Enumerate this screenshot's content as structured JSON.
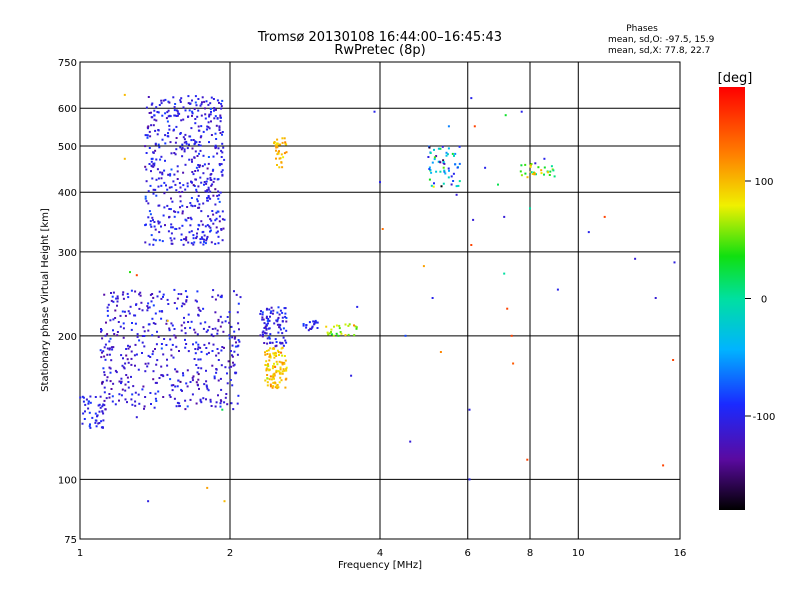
{
  "chart_data": {
    "type": "scatter",
    "title": "Tromsø 20130108 16:44:00–16:45:43",
    "subtitle": "RwPretec (8p)",
    "phases": {
      "heading": "Phases",
      "line_o": "mean, sd,O: -97.5, 15.9",
      "line_x": "mean, sd,X:  77.8, 22.7"
    },
    "xlabel": "Frequency [MHz]",
    "ylabel": "Stationary phase Virtual Height [km]",
    "xscale": "log",
    "yscale": "log",
    "xlim": [
      1,
      16
    ],
    "ylim": [
      75,
      750
    ],
    "xticks": [
      1,
      2,
      4,
      6,
      8,
      10,
      16
    ],
    "xtick_labels": [
      "1",
      "2",
      "4",
      "6",
      "8",
      "10",
      "16"
    ],
    "yticks": [
      75,
      100,
      200,
      300,
      400,
      500,
      600,
      750
    ],
    "ytick_labels": [
      "75",
      "100",
      "200",
      "300",
      "400",
      "500",
      "600",
      "750"
    ],
    "grid": true,
    "colorbar": {
      "label": "[deg]",
      "range": [
        -180,
        180
      ],
      "ticks": [
        100,
        0,
        -100
      ],
      "tick_labels": [
        "100",
        "0",
        "-100"
      ]
    },
    "clusters": [
      {
        "fmin": 1.35,
        "fmax": 1.95,
        "hmin": 310,
        "hmax": 640,
        "n": 520,
        "phase": -105,
        "spread": 14
      },
      {
        "fmin": 1.1,
        "fmax": 2.1,
        "hmin": 140,
        "hmax": 250,
        "n": 480,
        "phase": -110,
        "spread": 14
      },
      {
        "fmin": 1.0,
        "fmax": 1.12,
        "hmin": 128,
        "hmax": 150,
        "n": 45,
        "phase": -100,
        "spread": 10
      },
      {
        "fmin": 2.3,
        "fmax": 2.6,
        "hmin": 190,
        "hmax": 230,
        "n": 90,
        "phase": -100,
        "spread": 14
      },
      {
        "fmin": 2.35,
        "fmax": 2.6,
        "hmin": 155,
        "hmax": 190,
        "n": 110,
        "phase": 95,
        "spread": 14
      },
      {
        "fmin": 2.45,
        "fmax": 2.6,
        "hmin": 450,
        "hmax": 520,
        "n": 35,
        "phase": 100,
        "spread": 12
      },
      {
        "fmin": 2.8,
        "fmax": 3.0,
        "hmin": 205,
        "hmax": 215,
        "n": 20,
        "phase": -100,
        "spread": 10
      },
      {
        "fmin": 3.1,
        "fmax": 3.6,
        "hmin": 200,
        "hmax": 212,
        "n": 25,
        "phase": 70,
        "spread": 20
      },
      {
        "fmin": 5.0,
        "fmax": 5.8,
        "hmin": 410,
        "hmax": 500,
        "n": 60,
        "phase": -60,
        "spread": 60
      },
      {
        "fmin": 7.6,
        "fmax": 9.0,
        "hmin": 430,
        "hmax": 460,
        "n": 30,
        "phase": 60,
        "spread": 30
      }
    ],
    "points": [
      {
        "f": 1.23,
        "h": 640,
        "p": 100
      },
      {
        "f": 1.23,
        "h": 470,
        "p": 100
      },
      {
        "f": 1.26,
        "h": 272,
        "p": 40
      },
      {
        "f": 1.3,
        "h": 268,
        "p": 150
      },
      {
        "f": 1.3,
        "h": 135,
        "p": -110
      },
      {
        "f": 1.5,
        "h": 215,
        "p": 100
      },
      {
        "f": 1.37,
        "h": 90,
        "p": -105
      },
      {
        "f": 1.8,
        "h": 96,
        "p": 110
      },
      {
        "f": 1.95,
        "h": 90,
        "p": 100
      },
      {
        "f": 1.93,
        "h": 140,
        "p": 20
      },
      {
        "f": 3.3,
        "h": 200,
        "p": 40
      },
      {
        "f": 3.6,
        "h": 230,
        "p": -100
      },
      {
        "f": 3.5,
        "h": 165,
        "p": -105
      },
      {
        "f": 3.9,
        "h": 590,
        "p": -100
      },
      {
        "f": 4.05,
        "h": 335,
        "p": 130
      },
      {
        "f": 4.0,
        "h": 420,
        "p": -100
      },
      {
        "f": 4.5,
        "h": 200,
        "p": -80
      },
      {
        "f": 4.6,
        "h": 120,
        "p": -110
      },
      {
        "f": 4.9,
        "h": 280,
        "p": 110
      },
      {
        "f": 5.1,
        "h": 240,
        "p": -100
      },
      {
        "f": 5.3,
        "h": 185,
        "p": 120
      },
      {
        "f": 5.5,
        "h": 550,
        "p": -60
      },
      {
        "f": 5.7,
        "h": 395,
        "p": -110
      },
      {
        "f": 6.1,
        "h": 630,
        "p": -100
      },
      {
        "f": 6.1,
        "h": 310,
        "p": 150
      },
      {
        "f": 6.15,
        "h": 350,
        "p": -110
      },
      {
        "f": 6.05,
        "h": 140,
        "p": -105
      },
      {
        "f": 6.05,
        "h": 100,
        "p": -100
      },
      {
        "f": 6.2,
        "h": 550,
        "p": 150
      },
      {
        "f": 6.5,
        "h": 450,
        "p": -100
      },
      {
        "f": 6.9,
        "h": 415,
        "p": 20
      },
      {
        "f": 7.1,
        "h": 355,
        "p": -110
      },
      {
        "f": 7.15,
        "h": 580,
        "p": 30
      },
      {
        "f": 7.1,
        "h": 270,
        "p": 0
      },
      {
        "f": 7.2,
        "h": 228,
        "p": 150
      },
      {
        "f": 7.35,
        "h": 200,
        "p": 150
      },
      {
        "f": 7.4,
        "h": 175,
        "p": 140
      },
      {
        "f": 7.7,
        "h": 590,
        "p": -100
      },
      {
        "f": 7.9,
        "h": 110,
        "p": 150
      },
      {
        "f": 8.0,
        "h": 370,
        "p": 0
      },
      {
        "f": 8.2,
        "h": 460,
        "p": -110
      },
      {
        "f": 8.55,
        "h": 470,
        "p": -100
      },
      {
        "f": 9.1,
        "h": 250,
        "p": -100
      },
      {
        "f": 10.5,
        "h": 330,
        "p": -100
      },
      {
        "f": 11.3,
        "h": 355,
        "p": 150
      },
      {
        "f": 13.0,
        "h": 290,
        "p": -110
      },
      {
        "f": 14.3,
        "h": 240,
        "p": -110
      },
      {
        "f": 14.8,
        "h": 107,
        "p": 150
      },
      {
        "f": 15.6,
        "h": 285,
        "p": -105
      },
      {
        "f": 15.5,
        "h": 178,
        "p": 150
      }
    ]
  }
}
